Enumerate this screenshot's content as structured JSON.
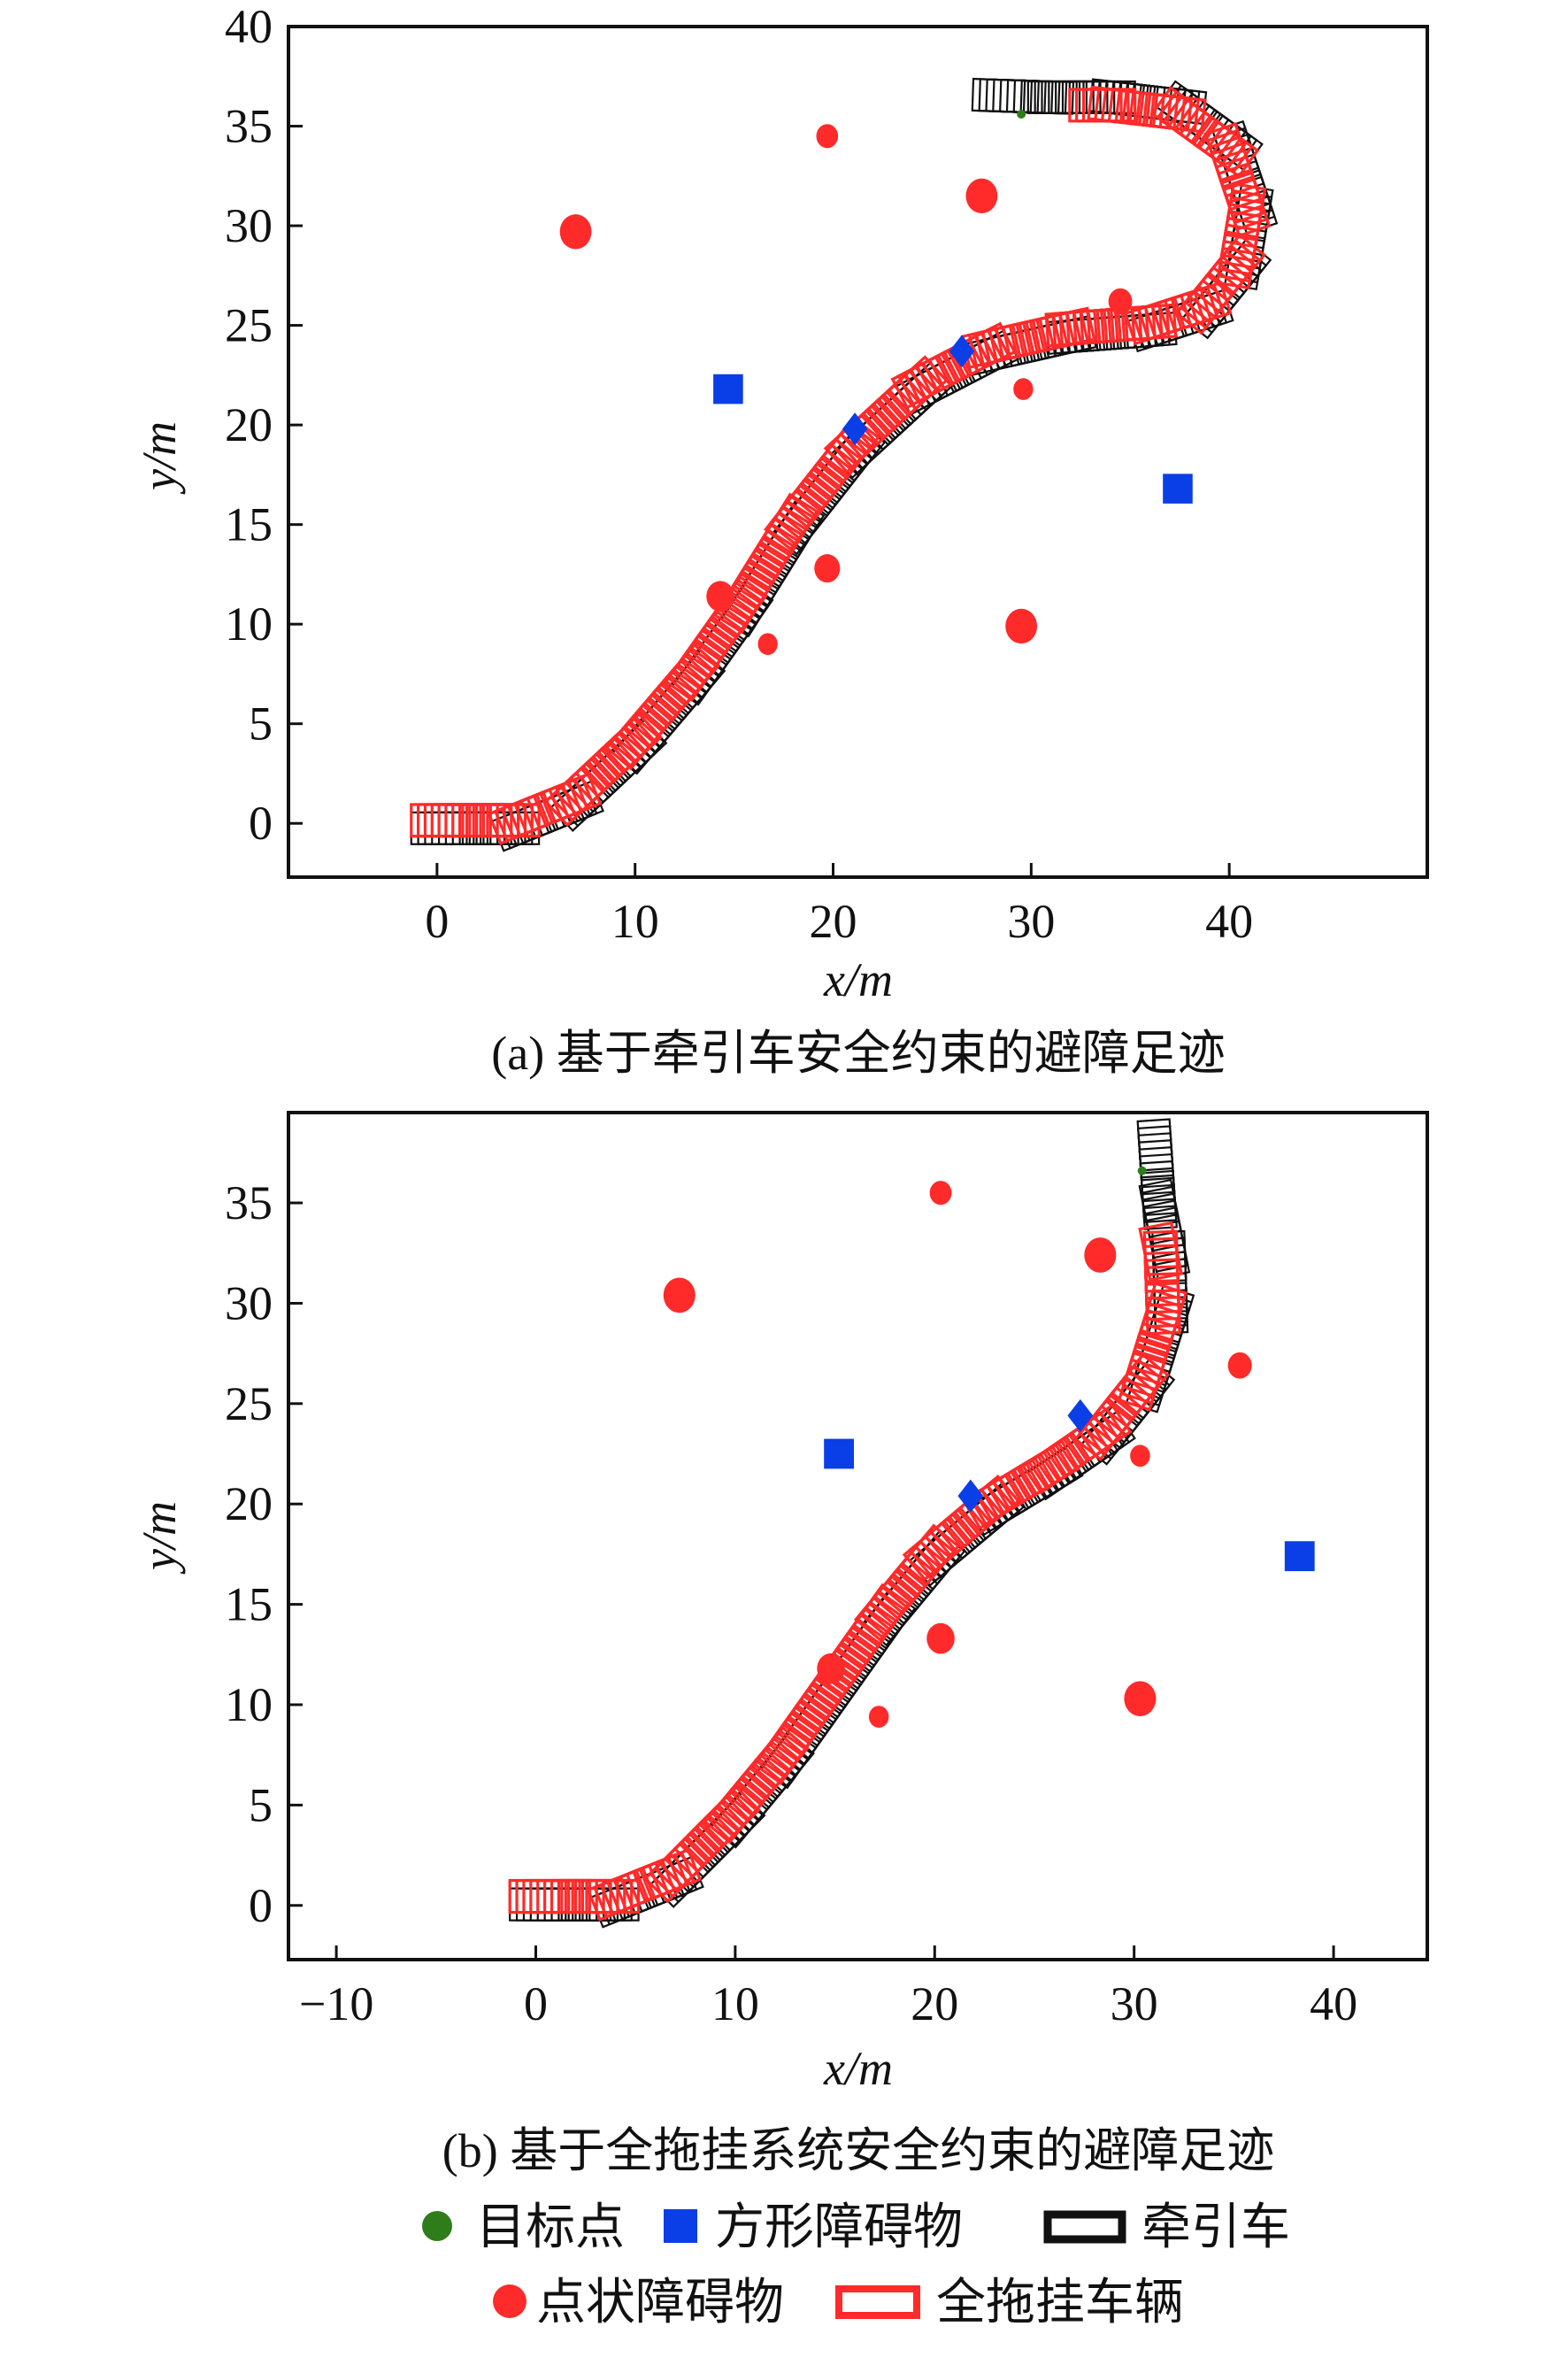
{
  "colors": {
    "point_obstacle": "#ff2a2a",
    "square_obstacle": "#0a3ee6",
    "tractor": "#111111",
    "trailer": "#ff2a2a",
    "goal": "#2e7d1a"
  },
  "chart_data": [
    {
      "type": "scatter",
      "caption": "(a) 基于牵引车安全约束的避障足迹",
      "xlabel": "x/m",
      "ylabel": "y/m",
      "xlim": [
        -7.5,
        50
      ],
      "ylim": [
        -2.7,
        40
      ],
      "xticks": [
        0,
        10,
        20,
        30,
        40
      ],
      "yticks": [
        0,
        5,
        10,
        15,
        20,
        25,
        30,
        35,
        40
      ],
      "point_obstacles": [
        {
          "x": 7,
          "y": 29.7,
          "r": 0.8
        },
        {
          "x": 19.7,
          "y": 34.5,
          "r": 0.55
        },
        {
          "x": 27.5,
          "y": 31.5,
          "r": 0.8
        },
        {
          "x": 34.5,
          "y": 26.2,
          "r": 0.6
        },
        {
          "x": 29.6,
          "y": 21.8,
          "r": 0.5
        },
        {
          "x": 19.7,
          "y": 12.8,
          "r": 0.65
        },
        {
          "x": 14.3,
          "y": 11.4,
          "r": 0.7
        },
        {
          "x": 16.7,
          "y": 9.0,
          "r": 0.5
        },
        {
          "x": 29.5,
          "y": 9.9,
          "r": 0.8
        }
      ],
      "square_obstacles": [
        {
          "x": 14.7,
          "y": 21.8,
          "shape": "square"
        },
        {
          "x": 37.4,
          "y": 16.8,
          "shape": "square"
        },
        {
          "x": 21.1,
          "y": 19.8,
          "shape": "diamond"
        },
        {
          "x": 26.5,
          "y": 23.7,
          "shape": "diamond"
        }
      ],
      "goal": {
        "x": 29.5,
        "y": 35.6
      },
      "path": [
        [
          0,
          0
        ],
        [
          4,
          0
        ],
        [
          7,
          1.2
        ],
        [
          10,
          4
        ],
        [
          13,
          7.5
        ],
        [
          15.5,
          11
        ],
        [
          18,
          15
        ],
        [
          21,
          18.8
        ],
        [
          24.5,
          22
        ],
        [
          28,
          23.8
        ],
        [
          32,
          24.7
        ],
        [
          36,
          25
        ],
        [
          38.8,
          25.9
        ],
        [
          40.5,
          28
        ],
        [
          41,
          31
        ],
        [
          40,
          34
        ],
        [
          37.5,
          35.8
        ],
        [
          34,
          36.2
        ],
        [
          31,
          36.2
        ],
        [
          28,
          36.3
        ]
      ],
      "trailer_end_fraction": 0.93
    },
    {
      "type": "scatter",
      "caption": "(b) 基于全拖挂系统安全约束的避障足迹",
      "xlabel": "x/m",
      "ylabel": "y/m",
      "xlim": [
        -12.4,
        44.7
      ],
      "ylim": [
        -2.7,
        39.5
      ],
      "xticks": [
        -10,
        0,
        10,
        20,
        30,
        40
      ],
      "yticks": [
        0,
        5,
        10,
        15,
        20,
        25,
        30,
        35
      ],
      "point_obstacles": [
        {
          "x": 7.2,
          "y": 30.4,
          "r": 0.8
        },
        {
          "x": 20.3,
          "y": 35.5,
          "r": 0.55
        },
        {
          "x": 28.3,
          "y": 32.4,
          "r": 0.8
        },
        {
          "x": 35.3,
          "y": 26.9,
          "r": 0.6
        },
        {
          "x": 30.3,
          "y": 22.4,
          "r": 0.5
        },
        {
          "x": 20.3,
          "y": 13.3,
          "r": 0.7
        },
        {
          "x": 14.8,
          "y": 11.8,
          "r": 0.7
        },
        {
          "x": 17.2,
          "y": 9.4,
          "r": 0.5
        },
        {
          "x": 30.3,
          "y": 10.3,
          "r": 0.8
        }
      ],
      "square_obstacles": [
        {
          "x": 15.2,
          "y": 22.5,
          "shape": "square"
        },
        {
          "x": 38.3,
          "y": 17.4,
          "shape": "square"
        },
        {
          "x": 21.8,
          "y": 20.4,
          "shape": "diamond"
        },
        {
          "x": 27.3,
          "y": 24.4,
          "shape": "diamond"
        }
      ],
      "goal": {
        "x": 30.4,
        "y": 36.6
      },
      "path": [
        [
          0,
          0.3
        ],
        [
          4,
          0.3
        ],
        [
          7,
          1.5
        ],
        [
          10,
          4.5
        ],
        [
          12.5,
          7.5
        ],
        [
          15,
          11
        ],
        [
          17.5,
          14.5
        ],
        [
          20,
          17.5
        ],
        [
          23,
          20
        ],
        [
          26,
          21.8
        ],
        [
          28.5,
          23.5
        ],
        [
          30.5,
          26
        ],
        [
          31.6,
          29.5
        ],
        [
          31.5,
          32.5
        ],
        [
          31,
          35
        ],
        [
          30.8,
          38
        ]
      ],
      "trailer_end_fraction": 0.9
    }
  ],
  "legend": {
    "goal": "目标点",
    "square_obstacle": "方形障碍物",
    "tractor": "牵引车",
    "point_obstacle": "点状障碍物",
    "trailer": "全拖挂车辆"
  }
}
